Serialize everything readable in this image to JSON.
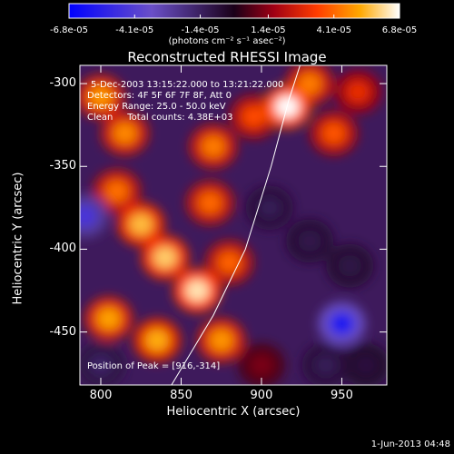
{
  "chart_data": {
    "type": "heatmap",
    "title": "Reconstructed RHESSI Image",
    "xlabel": "Heliocentric X (arcsec)",
    "ylabel": "Heliocentric Y (arcsec)",
    "xlim": [
      787,
      978
    ],
    "ylim": [
      -482,
      -289
    ],
    "xticks": [
      "800",
      "850",
      "900",
      "950"
    ],
    "xtick_values": [
      800,
      850,
      900,
      950
    ],
    "yticks": [
      "-300",
      "-350",
      "-400",
      "-450"
    ],
    "ytick_values": [
      -300,
      -350,
      -400,
      -450
    ],
    "colorbar": {
      "ticks": [
        "-6.8e-05",
        "-4.1e-05",
        "-1.4e-05",
        "1.4e-05",
        "4.1e-05",
        "6.8e-05"
      ],
      "tick_values": [
        -6.8e-05,
        -4.1e-05,
        -1.4e-05,
        1.4e-05,
        4.1e-05,
        6.8e-05
      ],
      "range": [
        -6.8e-05,
        6.8e-05
      ],
      "unit_label": "(photons cm⁻² s⁻¹ asec⁻²)"
    },
    "annotations": {
      "time": "5-Dec-2003 13:15:22.000 to 13:21:22.000",
      "detectors": "Detectors: 4F 5F 6F 7F 8F, Att 0",
      "energy": "Energy Range: 25.0 - 50.0 keV",
      "clean": "Clean     Total counts: 4.38E+03",
      "peak": "Position of Peak = [916,-314]"
    },
    "limb_curve": [
      [
        844,
        -482
      ],
      [
        870,
        -440
      ],
      [
        890,
        -400
      ],
      [
        906,
        -350
      ],
      [
        917,
        -310
      ],
      [
        924,
        -289
      ]
    ],
    "sources": [
      {
        "x": 860,
        "y": -425,
        "value": 6.3e-05
      },
      {
        "x": 840,
        "y": -405,
        "value": 5.8e-05
      },
      {
        "x": 825,
        "y": -385,
        "value": 5.5e-05
      },
      {
        "x": 810,
        "y": -365,
        "value": 4.2e-05
      },
      {
        "x": 815,
        "y": -330,
        "value": 4.6e-05
      },
      {
        "x": 870,
        "y": -338,
        "value": 4.4e-05
      },
      {
        "x": 868,
        "y": -372,
        "value": 4.1e-05
      },
      {
        "x": 800,
        "y": -308,
        "value": 4.8e-05
      },
      {
        "x": 805,
        "y": -442,
        "value": 5e-05
      },
      {
        "x": 835,
        "y": -455,
        "value": 5.2e-05
      },
      {
        "x": 875,
        "y": -455,
        "value": 4.8e-05
      },
      {
        "x": 880,
        "y": -408,
        "value": 4e-05
      },
      {
        "x": 895,
        "y": -320,
        "value": 3.6e-05
      },
      {
        "x": 916,
        "y": -314,
        "value": 6.8e-05
      },
      {
        "x": 930,
        "y": -300,
        "value": 4.4e-05
      },
      {
        "x": 945,
        "y": -330,
        "value": 3.8e-05
      },
      {
        "x": 960,
        "y": -305,
        "value": 3e-05
      },
      {
        "x": 905,
        "y": -375,
        "value": -1.2e-05
      },
      {
        "x": 930,
        "y": -395,
        "value": -1e-05
      },
      {
        "x": 955,
        "y": -410,
        "value": -9e-06
      },
      {
        "x": 950,
        "y": -445,
        "value": -6e-05
      },
      {
        "x": 965,
        "y": -470,
        "value": -7e-06
      },
      {
        "x": 790,
        "y": -380,
        "value": -4.5e-05
      },
      {
        "x": 800,
        "y": -470,
        "value": -1.5e-05
      },
      {
        "x": 900,
        "y": -470,
        "value": 1.2e-05
      },
      {
        "x": 940,
        "y": -470,
        "value": -1.2e-05
      }
    ]
  },
  "footer": "1-Jun-2013 04:48"
}
